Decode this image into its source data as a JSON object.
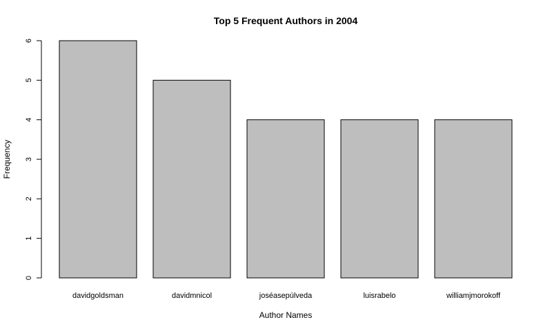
{
  "chart_data": {
    "type": "bar",
    "title": "Top 5 Frequent Authors in 2004",
    "xlabel": "Author Names",
    "ylabel": "Frequency",
    "categories": [
      "davidgoldsman",
      "davidmnicol",
      "joséasepúlveda",
      "luisrabelo",
      "williamjmorokoff"
    ],
    "values": [
      6,
      5,
      4,
      4,
      4
    ],
    "ylim": [
      0,
      6
    ],
    "yticks": [
      "0",
      "1",
      "2",
      "3",
      "4",
      "5",
      "6"
    ],
    "grid": false,
    "legend": "none",
    "bar_color": "#bebebe"
  }
}
